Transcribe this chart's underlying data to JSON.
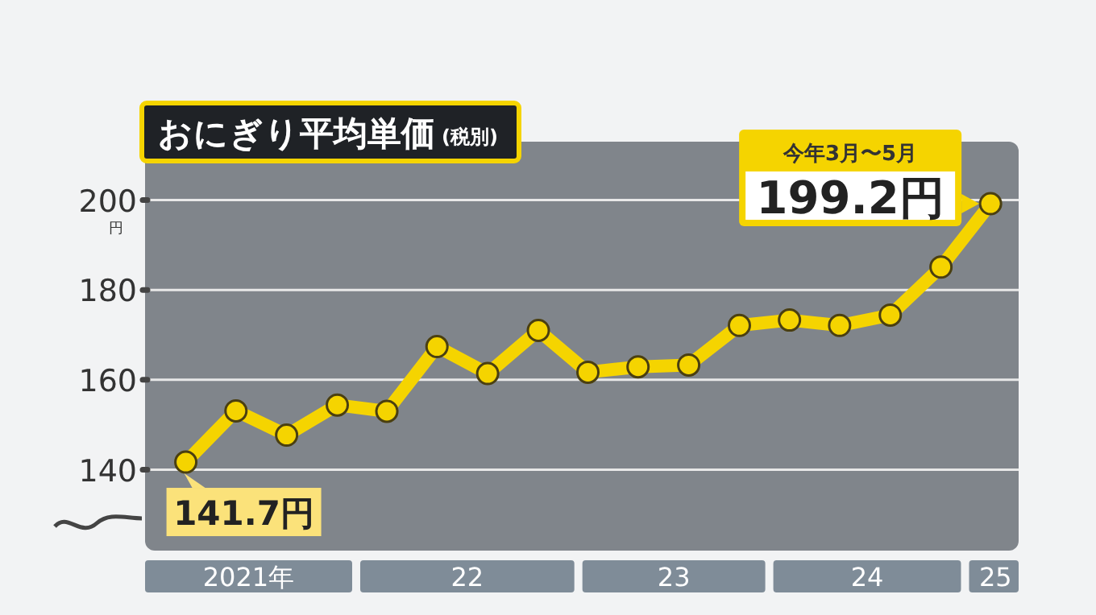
{
  "chart_data": {
    "type": "line",
    "title": "おにぎり平均単価",
    "subtitle": "(税別)",
    "ylabel": "円",
    "x": [
      "2021-04",
      "2021-07",
      "2021-10",
      "2022-01",
      "2022-04",
      "2022-07",
      "2022-10",
      "2023-01",
      "2023-04",
      "2023-07",
      "2023-10",
      "2024-01",
      "2024-04",
      "2024-07",
      "2024-10",
      "2025-01",
      "2025-04"
    ],
    "xlim": [
      "2021-01-17",
      "2025-05-22"
    ],
    "xticks": [
      {
        "value": "2021-07-24",
        "label": "2021年"
      },
      {
        "value": "2022-08-25",
        "label": "22"
      },
      {
        "value": "2023-09-04",
        "label": "23"
      },
      {
        "value": "2024-08-20",
        "label": "24"
      },
      {
        "value": "2025-04-10",
        "label": "25"
      }
    ],
    "series": [
      {
        "color": "#f5d400",
        "values": [
          141.7,
          153.1,
          147.7,
          154.4,
          153.0,
          167.4,
          161.4,
          171.0,
          161.7,
          162.9,
          163.3,
          172.1,
          173.3,
          172.1,
          174.4,
          185.1,
          199.2
        ]
      }
    ],
    "value_labels": [
      "141.7円",
      null,
      null,
      null,
      null,
      null,
      null,
      null,
      null,
      null,
      null,
      null,
      null,
      null,
      null,
      null,
      "199.2円"
    ],
    "annotations": [
      "今年3月〜5月"
    ],
    "ylim": [
      122,
      213
    ],
    "yticks": [
      140,
      160,
      180,
      200
    ],
    "grid": "y",
    "marker": "circle",
    "line_style": "solid"
  }
}
